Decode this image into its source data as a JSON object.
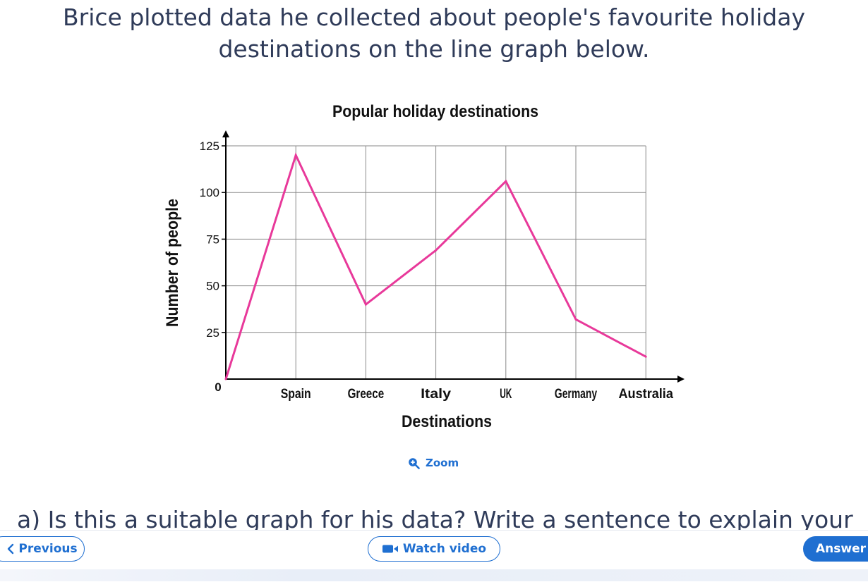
{
  "question": {
    "line1": "Brice plotted data he collected about people's favourite holiday",
    "line2": "destinations on the line graph below."
  },
  "chart_data": {
    "type": "line",
    "title": "Popular holiday destinations",
    "xlabel": "Destinations",
    "ylabel": "Number of people",
    "categories": [
      "",
      "Spain",
      "Greece",
      "Italy",
      "UK",
      "Germany",
      "Australia"
    ],
    "origin_label": "0",
    "y_ticks": [
      "25",
      "50",
      "75",
      "100",
      "125"
    ],
    "ylim": [
      0,
      125
    ],
    "grid": true,
    "series": [
      {
        "values": [
          0,
          120,
          40,
          69,
          106,
          32,
          12
        ],
        "color": "#e8399a"
      }
    ]
  },
  "zoom": {
    "label": "Zoom",
    "icon": "zoom-in-icon"
  },
  "part_a": {
    "text": "a) Is this a suitable graph for his data? Write a sentence to explain your"
  },
  "nav": {
    "previous_label": "Previous",
    "watch_video_label": "Watch video",
    "answer_label": "Answer"
  },
  "colors": {
    "accent": "#1f6fd1",
    "text": "#2f3b59",
    "line": "#e8399a"
  }
}
